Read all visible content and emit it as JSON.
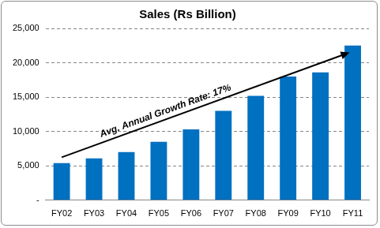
{
  "chart_data": {
    "type": "bar",
    "title": "Sales (Rs Billion)",
    "annotation": "Avg. Annual Growth Rate: 17%",
    "categories": [
      "FY02",
      "FY03",
      "FY04",
      "FY05",
      "FY06",
      "FY07",
      "FY08",
      "FY09",
      "FY10",
      "FY11"
    ],
    "values": [
      5400,
      6100,
      7000,
      8500,
      10300,
      13000,
      15200,
      18000,
      18600,
      22500
    ],
    "color": "#0070c0",
    "ylim": [
      0,
      25000
    ],
    "yticks": [
      {
        "value": 0,
        "label": "-"
      },
      {
        "value": 5000,
        "label": "5,000"
      },
      {
        "value": 10000,
        "label": "10,000"
      },
      {
        "value": 15000,
        "label": "15,000"
      },
      {
        "value": 20000,
        "label": "20,000"
      },
      {
        "value": 25000,
        "label": "25,000"
      }
    ],
    "grid": true
  }
}
